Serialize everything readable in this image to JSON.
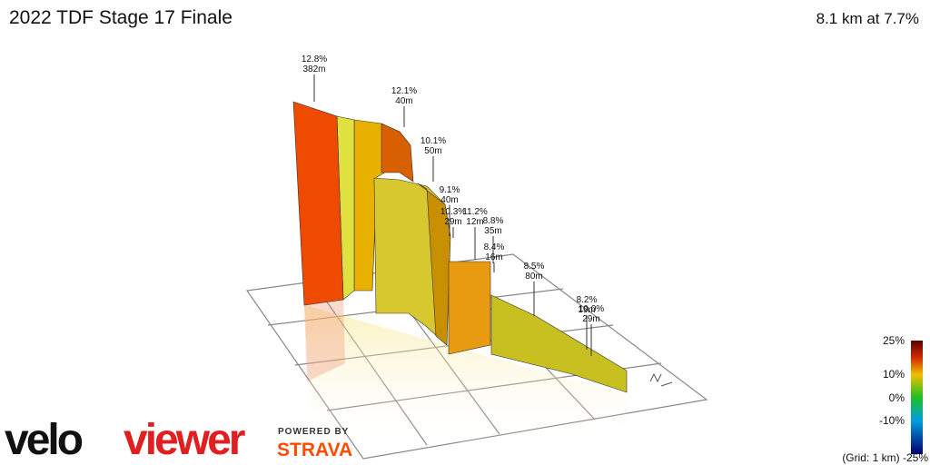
{
  "header": {
    "title": "2022 TDF Stage 17 Finale",
    "summary": "8.1 km at 7.7%"
  },
  "annotations": [
    {
      "grade": "12.8%",
      "length": "382m"
    },
    {
      "grade": "12.1%",
      "length": "40m"
    },
    {
      "grade": "10.1%",
      "length": "50m"
    },
    {
      "grade": "9.1%",
      "length": "40m"
    },
    {
      "grade": "10.3%",
      "length": "29m"
    },
    {
      "grade": "11.2%",
      "length": "12m"
    },
    {
      "grade": "8.8%",
      "length": "35m"
    },
    {
      "grade": "8.4%",
      "length": "16m"
    },
    {
      "grade": "8.5%",
      "length": "80m"
    },
    {
      "grade": "8.2%",
      "length": "19m"
    },
    {
      "grade": "10.0%",
      "length": "29m"
    }
  ],
  "legend": {
    "ticks": [
      "25%",
      "10%",
      "0%",
      "-10%"
    ],
    "note": "(Grid: 1 km) -25%"
  },
  "brand": {
    "velo": "velo",
    "viewer": "viewer",
    "powered": "POWERED BY",
    "strava": "STRAVA"
  }
}
